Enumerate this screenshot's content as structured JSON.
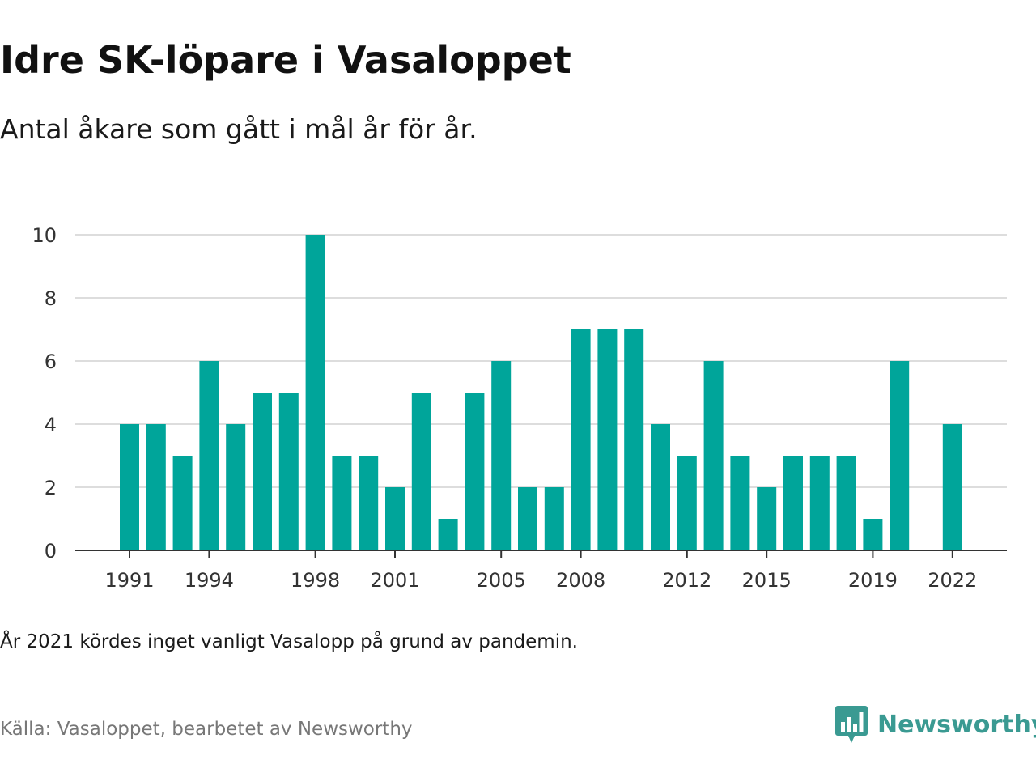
{
  "title": "Idre SK-löpare i Vasaloppet",
  "subtitle": "Antal åkare som gått i mål år för år.",
  "note": "År 2021 kördes inget vanligt Vasalopp på grund av pandemin.",
  "source": "Källa: Vasaloppet, bearbetet av Newsworthy",
  "logo": {
    "text": "Newsworthy",
    "icon": "newsworthy-chart-icon",
    "color": "#3a9a92"
  },
  "chart_data": {
    "type": "bar",
    "title": "",
    "xlabel": "",
    "ylabel": "",
    "categories": [
      1991,
      1992,
      1993,
      1994,
      1995,
      1996,
      1997,
      1998,
      1999,
      2000,
      2001,
      2002,
      2003,
      2004,
      2005,
      2006,
      2007,
      2008,
      2009,
      2010,
      2011,
      2012,
      2013,
      2014,
      2015,
      2016,
      2017,
      2018,
      2019,
      2020,
      2021,
      2022
    ],
    "values": [
      4,
      4,
      3,
      6,
      4,
      5,
      5,
      10,
      3,
      3,
      2,
      5,
      1,
      5,
      6,
      2,
      2,
      7,
      7,
      7,
      4,
      3,
      6,
      3,
      2,
      3,
      3,
      3,
      1,
      6,
      null,
      4
    ],
    "x_tick_labels": [
      "1991",
      "1994",
      "1998",
      "2001",
      "2005",
      "2008",
      "2012",
      "2015",
      "2019",
      "2022"
    ],
    "y_ticks": [
      0,
      2,
      4,
      6,
      8,
      10
    ],
    "ylim": [
      0,
      10
    ],
    "grid": true,
    "bar_color": "#00a59a",
    "grid_color": "#dddddd",
    "axis_color": "#333333"
  }
}
